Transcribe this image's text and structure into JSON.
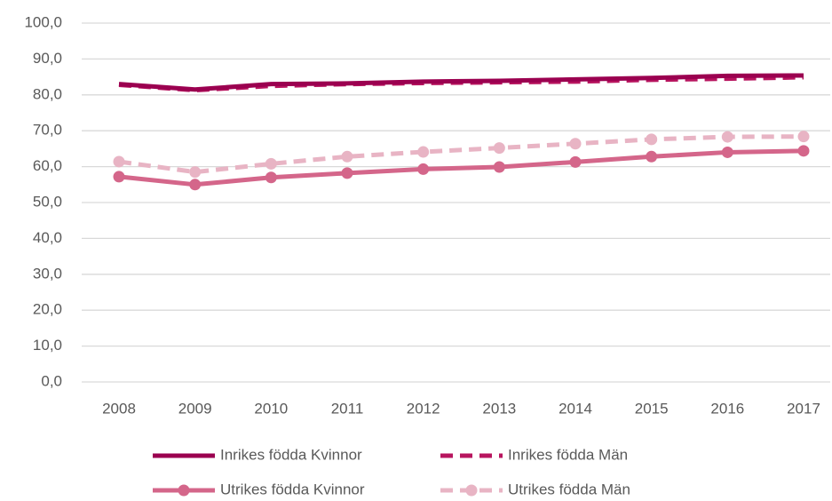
{
  "chart_data": {
    "type": "line",
    "categories": [
      "2008",
      "2009",
      "2010",
      "2011",
      "2012",
      "2013",
      "2014",
      "2015",
      "2016",
      "2017"
    ],
    "series": [
      {
        "name": "Inrikes födda Kvinnor",
        "color": "#9b0050",
        "dashed": false,
        "markers": false,
        "values": [
          83.0,
          81.5,
          83.0,
          83.2,
          83.7,
          83.9,
          84.3,
          84.7,
          85.3,
          85.4
        ]
      },
      {
        "name": "Inrikes födda Män",
        "color": "#b8155f",
        "dashed": true,
        "markers": false,
        "values": [
          82.8,
          81.3,
          82.5,
          83.0,
          83.3,
          83.5,
          83.7,
          84.2,
          84.5,
          84.9
        ]
      },
      {
        "name": "Utrikes födda Kvinnor",
        "color": "#d4668a",
        "dashed": false,
        "markers": true,
        "values": [
          57.2,
          55.0,
          57.0,
          58.2,
          59.3,
          59.9,
          61.3,
          62.8,
          64.0,
          64.4
        ]
      },
      {
        "name": "Utrikes födda Män",
        "color": "#e8b4c4",
        "dashed": true,
        "markers": true,
        "values": [
          61.4,
          58.5,
          60.8,
          62.8,
          64.1,
          65.2,
          66.4,
          67.6,
          68.3,
          68.4
        ]
      }
    ],
    "ylim": [
      0,
      100
    ],
    "yticks": [
      {
        "value": 0,
        "label": "0,0"
      },
      {
        "value": 10,
        "label": "10,0"
      },
      {
        "value": 20,
        "label": "20,0"
      },
      {
        "value": 30,
        "label": "30,0"
      },
      {
        "value": 40,
        "label": "40,0"
      },
      {
        "value": 50,
        "label": "50,0"
      },
      {
        "value": 60,
        "label": "60,0"
      },
      {
        "value": 70,
        "label": "70,0"
      },
      {
        "value": 80,
        "label": "80,0"
      },
      {
        "value": 90,
        "label": "90,0"
      },
      {
        "value": 100,
        "label": "100,0"
      }
    ],
    "grid": true
  }
}
